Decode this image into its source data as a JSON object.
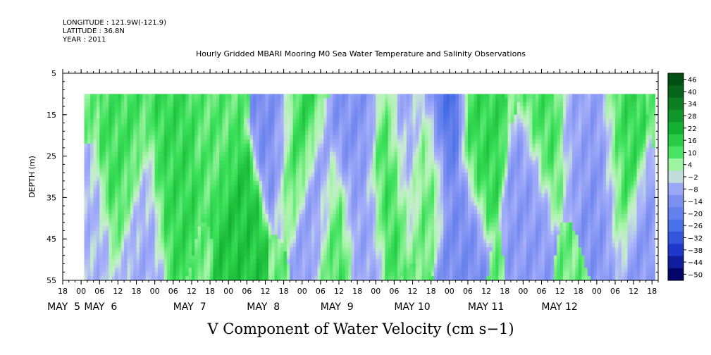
{
  "header": {
    "longitude": "LONGITUDE : 121.9W(-121.9)",
    "latitude": "LATITUDE : 36.8N",
    "year": "YEAR : 2011"
  },
  "chart_data": {
    "type": "heatmap",
    "title": "Hourly Gridded MBARI Mooring M0 Sea Water Temperature and Salinity Observations",
    "xlabel": "V Component of Water Velocity (cm s−1)",
    "ylabel": "DEPTH (m)",
    "ylim": [
      5,
      55
    ],
    "y_inverted": true,
    "yticks": [
      "5",
      "15",
      "25",
      "35",
      "45",
      "55"
    ],
    "xlim_hours": [
      -6,
      188
    ],
    "x_hour_ticks": [
      "18",
      "00",
      "06",
      "12",
      "18",
      "00",
      "06",
      "12",
      "18",
      "00",
      "06",
      "12",
      "18",
      "00",
      "06",
      "12",
      "18",
      "00",
      "06",
      "12",
      "18",
      "00",
      "06",
      "12",
      "18",
      "00",
      "06",
      "12",
      "18",
      "00",
      "06",
      "12",
      "18"
    ],
    "x_day_labels": [
      {
        "text": "MAY  5",
        "hour": 0
      },
      {
        "text": "MAY  6",
        "hour": 12
      },
      {
        "text": "MAY  7",
        "hour": 41
      },
      {
        "text": "MAY  8",
        "hour": 65
      },
      {
        "text": "MAY  9",
        "hour": 89
      },
      {
        "text": "MAY 10",
        "hour": 113
      },
      {
        "text": "MAY 11",
        "hour": 137
      },
      {
        "text": "MAY 12",
        "hour": 161
      }
    ],
    "data_start_hour": 1,
    "data_end_hour": 187,
    "data_min_depth": 10,
    "data_max_depth": 55,
    "colorbar": {
      "levels": [
        -50,
        -44,
        -38,
        -32,
        -26,
        -20,
        -14,
        -8,
        -2,
        4,
        10,
        16,
        22,
        28,
        34,
        40,
        46
      ],
      "tick_labels": [
        "46",
        "40",
        "34",
        "28",
        "22",
        "16",
        "10",
        "4",
        "−2",
        "−8",
        "−14",
        "−20",
        "−26",
        "−32",
        "−38",
        "−44",
        "−50"
      ]
    },
    "features": [
      {
        "hour": 2,
        "depth": 50,
        "value": -4
      },
      {
        "hour": 14,
        "depth": 25,
        "value": 12
      },
      {
        "hour": 20,
        "depth": 45,
        "value": -6
      },
      {
        "hour": 30,
        "depth": 30,
        "value": 14
      },
      {
        "hour": 44,
        "depth": 15,
        "value": 10
      },
      {
        "hour": 52,
        "depth": 48,
        "value": 18
      },
      {
        "hour": 64,
        "depth": 15,
        "value": -14
      },
      {
        "hour": 70,
        "depth": 20,
        "value": 16
      },
      {
        "hour": 76,
        "depth": 40,
        "value": -10
      },
      {
        "hour": 82,
        "depth": 50,
        "value": 12
      },
      {
        "hour": 90,
        "depth": 15,
        "value": -12
      },
      {
        "hour": 92,
        "depth": 40,
        "value": -8
      },
      {
        "hour": 100,
        "depth": 30,
        "value": 14
      },
      {
        "hour": 106,
        "depth": 20,
        "value": -8
      },
      {
        "hour": 113,
        "depth": 25,
        "value": 10
      },
      {
        "hour": 118,
        "depth": 13,
        "value": -26
      },
      {
        "hour": 124,
        "depth": 45,
        "value": -14
      },
      {
        "hour": 130,
        "depth": 20,
        "value": 14
      },
      {
        "hour": 146,
        "depth": 40,
        "value": -10
      },
      {
        "hour": 152,
        "depth": 15,
        "value": 12
      },
      {
        "hour": 162,
        "depth": 14,
        "value": -8
      },
      {
        "hour": 170,
        "depth": 30,
        "value": -12
      },
      {
        "hour": 176,
        "depth": 25,
        "value": 14
      },
      {
        "hour": 184,
        "depth": 50,
        "value": -10
      }
    ]
  }
}
